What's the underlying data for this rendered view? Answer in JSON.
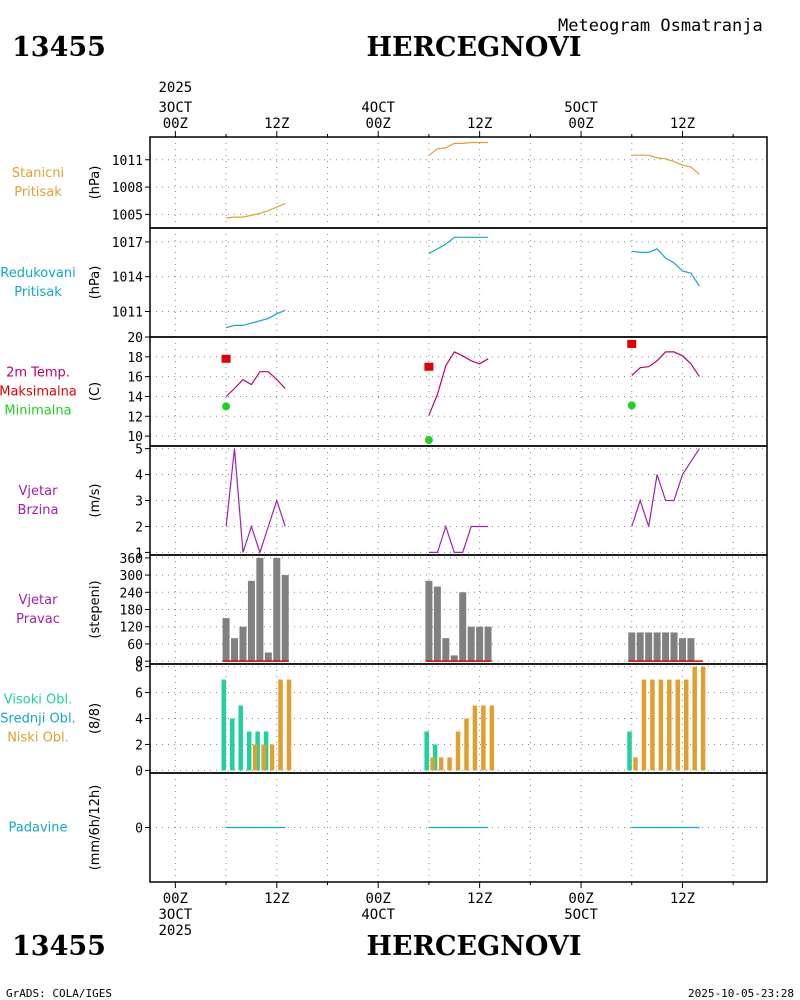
{
  "header": {
    "station_id": "13455",
    "station_name": "HERCEGNOVI",
    "subtitle": "Meteogram Osmatranja"
  },
  "footer": {
    "station_id": "13455",
    "station_name": "HERCEGNOVI",
    "credit": "GrADS: COLA/IGES",
    "timestamp": "2025-10-05-23:28"
  },
  "time_axis": {
    "year_label": "2025",
    "top_labels": [
      {
        "hour": 0,
        "lines": [
          "3OCT",
          "00Z"
        ]
      },
      {
        "hour": 12,
        "lines": [
          "12Z"
        ]
      },
      {
        "hour": 24,
        "lines": [
          "4OCT",
          "00Z"
        ]
      },
      {
        "hour": 36,
        "lines": [
          "12Z"
        ]
      },
      {
        "hour": 48,
        "lines": [
          "5OCT",
          "00Z"
        ]
      },
      {
        "hour": 60,
        "lines": [
          "12Z"
        ]
      }
    ],
    "bottom_labels": [
      {
        "hour": 0,
        "lines": [
          "00Z",
          "3OCT",
          "2025"
        ]
      },
      {
        "hour": 12,
        "lines": [
          "12Z"
        ]
      },
      {
        "hour": 24,
        "lines": [
          "00Z",
          "4OCT"
        ]
      },
      {
        "hour": 36,
        "lines": [
          "12Z"
        ]
      },
      {
        "hour": 48,
        "lines": [
          "00Z",
          "5OCT"
        ]
      },
      {
        "hour": 60,
        "lines": [
          "12Z"
        ]
      }
    ],
    "range_hours": [
      -3,
      70
    ]
  },
  "colors": {
    "orange": "#e0a030",
    "cyan": "#10a8c8",
    "red": "#e00000",
    "magenta": "#c00070",
    "green": "#20d020",
    "purple": "#a020b0",
    "gray": "#808080",
    "teal": "#20d0a0",
    "dark": "#000000"
  },
  "chart_data": [
    {
      "id": "station_pressure",
      "type": "line",
      "labels": [
        "Stanicni",
        "Pritisak"
      ],
      "label_color": "orange",
      "unit": "(hPa)",
      "ylim": [
        1003.5,
        1013.5
      ],
      "yticks": [
        1005,
        1008,
        1011
      ],
      "series": [
        {
          "name": "Stanicni Pritisak",
          "color": "orange",
          "segments": [
            [
              [
                6,
                1004.6
              ],
              [
                7,
                1004.7
              ],
              [
                8,
                1004.7
              ],
              [
                9,
                1004.9
              ],
              [
                10,
                1005.1
              ],
              [
                11,
                1005.4
              ],
              [
                12,
                1005.8
              ],
              [
                13,
                1006.2
              ]
            ],
            [
              [
                30,
                1011.5
              ],
              [
                31,
                1012.2
              ],
              [
                32,
                1012.3
              ],
              [
                33,
                1012.8
              ],
              [
                34,
                1012.8
              ],
              [
                35,
                1012.9
              ],
              [
                36,
                1012.9
              ],
              [
                37,
                1012.9
              ]
            ],
            [
              [
                54,
                1011.5
              ],
              [
                55,
                1011.5
              ],
              [
                56,
                1011.5
              ],
              [
                57,
                1011.2
              ],
              [
                58,
                1011.1
              ],
              [
                59,
                1010.8
              ],
              [
                60,
                1010.4
              ],
              [
                61,
                1010.2
              ],
              [
                62,
                1009.4
              ]
            ]
          ]
        }
      ]
    },
    {
      "id": "reduced_pressure",
      "type": "line",
      "labels": [
        "Redukovani",
        "Pritisak"
      ],
      "label_color": "cyan",
      "unit": "(hPa)",
      "ylim": [
        1008.8,
        1018.2
      ],
      "yticks": [
        1011,
        1014,
        1017
      ],
      "series": [
        {
          "name": "Redukovani Pritisak",
          "color": "cyan",
          "segments": [
            [
              [
                6,
                1009.6
              ],
              [
                7,
                1009.8
              ],
              [
                8,
                1009.8
              ],
              [
                9,
                1010.0
              ],
              [
                10,
                1010.2
              ],
              [
                11,
                1010.4
              ],
              [
                12,
                1010.8
              ],
              [
                13,
                1011.1
              ]
            ],
            [
              [
                30,
                1016.0
              ],
              [
                31,
                1016.4
              ],
              [
                32,
                1016.8
              ],
              [
                33,
                1017.4
              ],
              [
                34,
                1017.4
              ],
              [
                35,
                1017.4
              ],
              [
                36,
                1017.4
              ],
              [
                37,
                1017.4
              ]
            ],
            [
              [
                54,
                1016.2
              ],
              [
                55,
                1016.1
              ],
              [
                56,
                1016.1
              ],
              [
                57,
                1016.4
              ],
              [
                58,
                1015.6
              ],
              [
                59,
                1015.2
              ],
              [
                60,
                1014.5
              ],
              [
                61,
                1014.3
              ],
              [
                62,
                1013.2
              ]
            ]
          ]
        }
      ]
    },
    {
      "id": "temperature",
      "type": "line",
      "labels": [
        "2m Temp.",
        "Maksimalna",
        "Minimalna"
      ],
      "label_colors": [
        "magenta",
        "red",
        "green"
      ],
      "unit": "(C)",
      "ylim": [
        9,
        20
      ],
      "yticks": [
        10,
        12,
        14,
        16,
        18,
        20
      ],
      "series": [
        {
          "name": "2m Temp.",
          "color": "magenta",
          "segments": [
            [
              [
                6,
                14.0
              ],
              [
                7,
                14.8
              ],
              [
                8,
                15.7
              ],
              [
                9,
                15.2
              ],
              [
                10,
                16.5
              ],
              [
                11,
                16.5
              ],
              [
                12,
                15.7
              ],
              [
                13,
                14.8
              ]
            ],
            [
              [
                30,
                12.1
              ],
              [
                31,
                14.2
              ],
              [
                32,
                17.1
              ],
              [
                33,
                18.5
              ],
              [
                34,
                18.1
              ],
              [
                35,
                17.6
              ],
              [
                36,
                17.3
              ],
              [
                37,
                17.8
              ]
            ],
            [
              [
                54,
                16.1
              ],
              [
                55,
                16.9
              ],
              [
                56,
                17.0
              ],
              [
                57,
                17.6
              ],
              [
                58,
                18.5
              ],
              [
                59,
                18.5
              ],
              [
                60,
                18.1
              ],
              [
                61,
                17.3
              ],
              [
                62,
                16.0
              ]
            ]
          ]
        }
      ],
      "max_points": [
        {
          "x": 6,
          "y": 17.8
        },
        {
          "x": 30,
          "y": 17.0
        },
        {
          "x": 54,
          "y": 19.3
        }
      ],
      "min_points": [
        {
          "x": 6,
          "y": 13.0
        },
        {
          "x": 30,
          "y": 9.6
        },
        {
          "x": 54,
          "y": 13.1
        }
      ]
    },
    {
      "id": "wind_speed",
      "type": "line",
      "labels": [
        "Vjetar",
        "Brzina"
      ],
      "label_color": "purple",
      "unit": "(m/s)",
      "ylim": [
        0.9,
        5.1
      ],
      "yticks": [
        1,
        2,
        3,
        4,
        5
      ],
      "series": [
        {
          "name": "Vjetar Brzina",
          "color": "purple",
          "segments": [
            [
              [
                6,
                2
              ],
              [
                7,
                5
              ],
              [
                8,
                1
              ],
              [
                9,
                2
              ],
              [
                10,
                1
              ],
              [
                11,
                2
              ],
              [
                12,
                3
              ],
              [
                13,
                2
              ]
            ],
            [
              [
                30,
                1
              ],
              [
                31,
                1
              ],
              [
                32,
                2
              ],
              [
                33,
                1
              ],
              [
                34,
                1
              ],
              [
                35,
                2
              ],
              [
                36,
                2
              ],
              [
                37,
                2
              ]
            ],
            [
              [
                54,
                2
              ],
              [
                55,
                3
              ],
              [
                56,
                2
              ],
              [
                57,
                4
              ],
              [
                58,
                3
              ],
              [
                59,
                3
              ],
              [
                60,
                4
              ],
              [
                61,
                4.5
              ],
              [
                62,
                5
              ]
            ]
          ]
        }
      ]
    },
    {
      "id": "wind_direction",
      "type": "bar",
      "labels": [
        "Vjetar",
        "Pravac"
      ],
      "label_color": "purple",
      "unit": "(stepeni)",
      "ylim": [
        -10,
        370
      ],
      "yticks": [
        0,
        60,
        120,
        180,
        240,
        300,
        360
      ],
      "bar_color": "gray",
      "base_line_color": "red",
      "bars": [
        {
          "x": 6,
          "v": 150
        },
        {
          "x": 7,
          "v": 80
        },
        {
          "x": 8,
          "v": 120
        },
        {
          "x": 9,
          "v": 280
        },
        {
          "x": 10,
          "v": 360
        },
        {
          "x": 11,
          "v": 30
        },
        {
          "x": 12,
          "v": 360
        },
        {
          "x": 13,
          "v": 300
        },
        {
          "x": 30,
          "v": 280
        },
        {
          "x": 31,
          "v": 260
        },
        {
          "x": 32,
          "v": 80
        },
        {
          "x": 33,
          "v": 20
        },
        {
          "x": 34,
          "v": 240
        },
        {
          "x": 35,
          "v": 120
        },
        {
          "x": 36,
          "v": 120
        },
        {
          "x": 37,
          "v": 120
        },
        {
          "x": 54,
          "v": 100
        },
        {
          "x": 55,
          "v": 100
        },
        {
          "x": 56,
          "v": 100
        },
        {
          "x": 57,
          "v": 100
        },
        {
          "x": 58,
          "v": 100
        },
        {
          "x": 59,
          "v": 100
        },
        {
          "x": 60,
          "v": 80
        },
        {
          "x": 61,
          "v": 80
        }
      ],
      "base_segments": [
        [
          6,
          13
        ],
        [
          30,
          37
        ],
        [
          54,
          62
        ]
      ]
    },
    {
      "id": "cloud_cover",
      "type": "bar",
      "labels": [
        "Visoki Obl.",
        "Srednji Obl.",
        "Niski Obl."
      ],
      "label_colors": [
        "teal",
        "cyan",
        "orange"
      ],
      "unit": "(8/8)",
      "ylim": [
        -0.2,
        8.2
      ],
      "yticks": [
        0,
        2,
        4,
        6,
        8
      ],
      "series": [
        {
          "name": "Visoki Obl.",
          "color": "teal",
          "values": [
            {
              "x": 6,
              "v": 7
            },
            {
              "x": 7,
              "v": 4
            },
            {
              "x": 8,
              "v": 5
            },
            {
              "x": 9,
              "v": 3
            },
            {
              "x": 10,
              "v": 3
            },
            {
              "x": 11,
              "v": 3
            },
            {
              "x": 30,
              "v": 3
            },
            {
              "x": 31,
              "v": 2
            },
            {
              "x": 54,
              "v": 3
            }
          ]
        },
        {
          "name": "Niski Obl.",
          "color": "orange",
          "values": [
            {
              "x": 9,
              "v": 2
            },
            {
              "x": 10,
              "v": 2
            },
            {
              "x": 11,
              "v": 2
            },
            {
              "x": 12,
              "v": 7
            },
            {
              "x": 13,
              "v": 7
            },
            {
              "x": 30,
              "v": 1
            },
            {
              "x": 31,
              "v": 1
            },
            {
              "x": 32,
              "v": 1
            },
            {
              "x": 33,
              "v": 3
            },
            {
              "x": 34,
              "v": 4
            },
            {
              "x": 35,
              "v": 5
            },
            {
              "x": 36,
              "v": 5
            },
            {
              "x": 37,
              "v": 5
            },
            {
              "x": 54,
              "v": 1
            },
            {
              "x": 55,
              "v": 7
            },
            {
              "x": 56,
              "v": 7
            },
            {
              "x": 57,
              "v": 7
            },
            {
              "x": 58,
              "v": 7
            },
            {
              "x": 59,
              "v": 7
            },
            {
              "x": 60,
              "v": 7
            },
            {
              "x": 61,
              "v": 8
            },
            {
              "x": 62,
              "v": 8
            }
          ]
        }
      ]
    },
    {
      "id": "precipitation",
      "type": "line",
      "labels": [
        "Padavine"
      ],
      "label_color": "cyan",
      "unit": "(mm/6h/12h)",
      "ylim": [
        -1,
        1
      ],
      "yticks": [
        0
      ],
      "series": [
        {
          "name": "Padavine",
          "color": "cyan",
          "segments": [
            [
              [
                6,
                0
              ],
              [
                13,
                0
              ]
            ],
            [
              [
                30,
                0
              ],
              [
                37,
                0
              ]
            ],
            [
              [
                54,
                0
              ],
              [
                62,
                0
              ]
            ]
          ]
        }
      ]
    }
  ]
}
